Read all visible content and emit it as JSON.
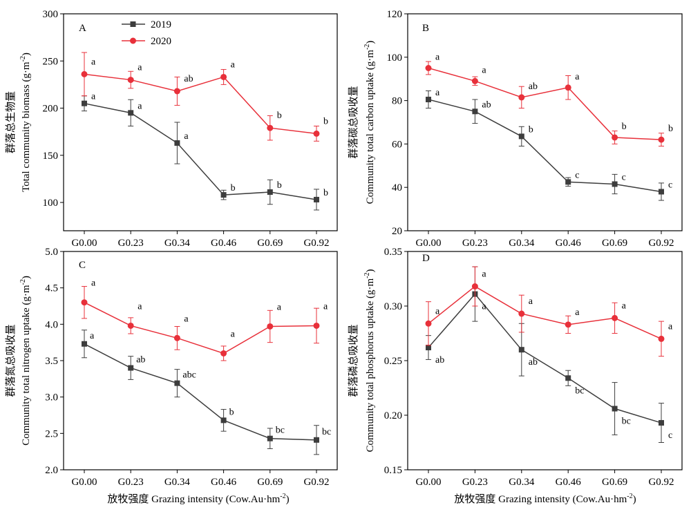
{
  "colors": {
    "series2019": "#3d3d3d",
    "series2020": "#e8303a"
  },
  "shared": {
    "xlabel_zh": "放牧强度",
    "xlabel_en": "Grazing intensity (Cow.Au·hm",
    "xlabel_sup": "-2",
    "xlabel_close": ")"
  },
  "legend": {
    "label_2019": "2019",
    "label_2020": "2020",
    "placement": "top-left of panel A"
  },
  "chart_data": [
    {
      "type": "line",
      "panel": "A",
      "categories": [
        "G0.00",
        "G0.23",
        "G0.34",
        "G0.46",
        "G0.69",
        "G0.92"
      ],
      "ylabel_zh": "群落总生物量",
      "ylabel_en": "Total community biomass (g·m",
      "ylabel_sup": "-2",
      "ylabel_close": ")",
      "ylim": [
        70,
        300
      ],
      "yticks": [
        100,
        150,
        200,
        250,
        300
      ],
      "ytick_labels": [
        "100",
        "150",
        "200",
        "250",
        "300"
      ],
      "series": [
        {
          "name": "2019",
          "values": [
            205,
            195,
            163,
            108,
            111,
            103
          ],
          "errors": [
            8,
            14,
            22,
            5,
            13,
            11
          ],
          "letters": [
            "a",
            "a",
            "a",
            "b",
            "b",
            "b"
          ]
        },
        {
          "name": "2020",
          "values": [
            236,
            230,
            218,
            233,
            179,
            173
          ],
          "errors": [
            23,
            9,
            15,
            8,
            13,
            8
          ],
          "letters": [
            "a",
            "a",
            "ab",
            "a",
            "b",
            "b"
          ]
        }
      ]
    },
    {
      "type": "line",
      "panel": "B",
      "categories": [
        "G0.00",
        "G0.23",
        "G0.34",
        "G0.46",
        "G0.69",
        "G0.92"
      ],
      "ylabel_zh": "群落碳总吸收量",
      "ylabel_en": "Community total carbon uptake (g·m",
      "ylabel_sup": "-2",
      "ylabel_close": ")",
      "ylim": [
        20,
        120
      ],
      "yticks": [
        20,
        40,
        60,
        80,
        100,
        120
      ],
      "ytick_labels": [
        "20",
        "40",
        "60",
        "80",
        "100",
        "120"
      ],
      "series": [
        {
          "name": "2019",
          "values": [
            80.5,
            75,
            63.5,
            42.5,
            41.5,
            38
          ],
          "errors": [
            4,
            5.5,
            4.5,
            2,
            4.5,
            4
          ],
          "letters": [
            "a",
            "ab",
            "b",
            "c",
            "c",
            "c"
          ]
        },
        {
          "name": "2020",
          "values": [
            95,
            89,
            81.5,
            86,
            63,
            62
          ],
          "errors": [
            3,
            2,
            5,
            5.5,
            3,
            3
          ],
          "letters": [
            "a",
            "a",
            "ab",
            "a",
            "b",
            "b"
          ]
        }
      ]
    },
    {
      "type": "line",
      "panel": "C",
      "categories": [
        "G0.00",
        "G0.23",
        "G0.34",
        "G0.46",
        "G0.69",
        "G0.92"
      ],
      "ylabel_zh": "群落氮总吸收量",
      "ylabel_en": "Community total nitrogen uptake (g·m",
      "ylabel_sup": "-2",
      "ylabel_close": ")",
      "ylim": [
        2.0,
        5.0
      ],
      "yticks": [
        2.0,
        2.5,
        3.0,
        3.5,
        4.0,
        4.5,
        5.0
      ],
      "ytick_labels": [
        "2.0",
        "2.5",
        "3.0",
        "3.5",
        "4.0",
        "4.5",
        "5.0"
      ],
      "series": [
        {
          "name": "2019",
          "values": [
            3.73,
            3.4,
            3.19,
            2.68,
            2.43,
            2.41
          ],
          "errors": [
            0.19,
            0.16,
            0.19,
            0.15,
            0.14,
            0.2
          ],
          "letters": [
            "a",
            "ab",
            "abc",
            "b",
            "bc",
            "bc"
          ]
        },
        {
          "name": "2020",
          "values": [
            4.3,
            3.98,
            3.81,
            3.6,
            3.97,
            3.98
          ],
          "errors": [
            0.22,
            0.11,
            0.16,
            0.1,
            0.22,
            0.24
          ],
          "letters": [
            "a",
            "a",
            "a",
            "a",
            "a",
            "a"
          ]
        }
      ]
    },
    {
      "type": "line",
      "panel": "D",
      "categories": [
        "G0.00",
        "G0.23",
        "G0.34",
        "G0.46",
        "G0.69",
        "G0.92"
      ],
      "ylabel_zh": "群落磷总吸收量",
      "ylabel_en": "Community total phosphorus uptake (g·m",
      "ylabel_sup": "-2",
      "ylabel_close": ")",
      "ylim": [
        0.15,
        0.35
      ],
      "yticks": [
        0.15,
        0.2,
        0.25,
        0.3,
        0.35
      ],
      "ytick_labels": [
        "0.15",
        "0.20",
        "0.25",
        "0.30",
        "0.35"
      ],
      "series": [
        {
          "name": "2019",
          "values": [
            0.262,
            0.311,
            0.26,
            0.234,
            0.206,
            0.193
          ],
          "errors": [
            0.011,
            0.025,
            0.024,
            0.007,
            0.024,
            0.018
          ],
          "letters": [
            "ab",
            "a",
            "ab",
            "bc",
            "bc",
            "c"
          ]
        },
        {
          "name": "2020",
          "values": [
            0.284,
            0.318,
            0.293,
            0.283,
            0.289,
            0.27
          ],
          "errors": [
            0.02,
            0.018,
            0.017,
            0.008,
            0.014,
            0.016
          ],
          "letters": [
            "a",
            "a",
            "a",
            "a",
            "a",
            "a"
          ]
        }
      ]
    }
  ]
}
